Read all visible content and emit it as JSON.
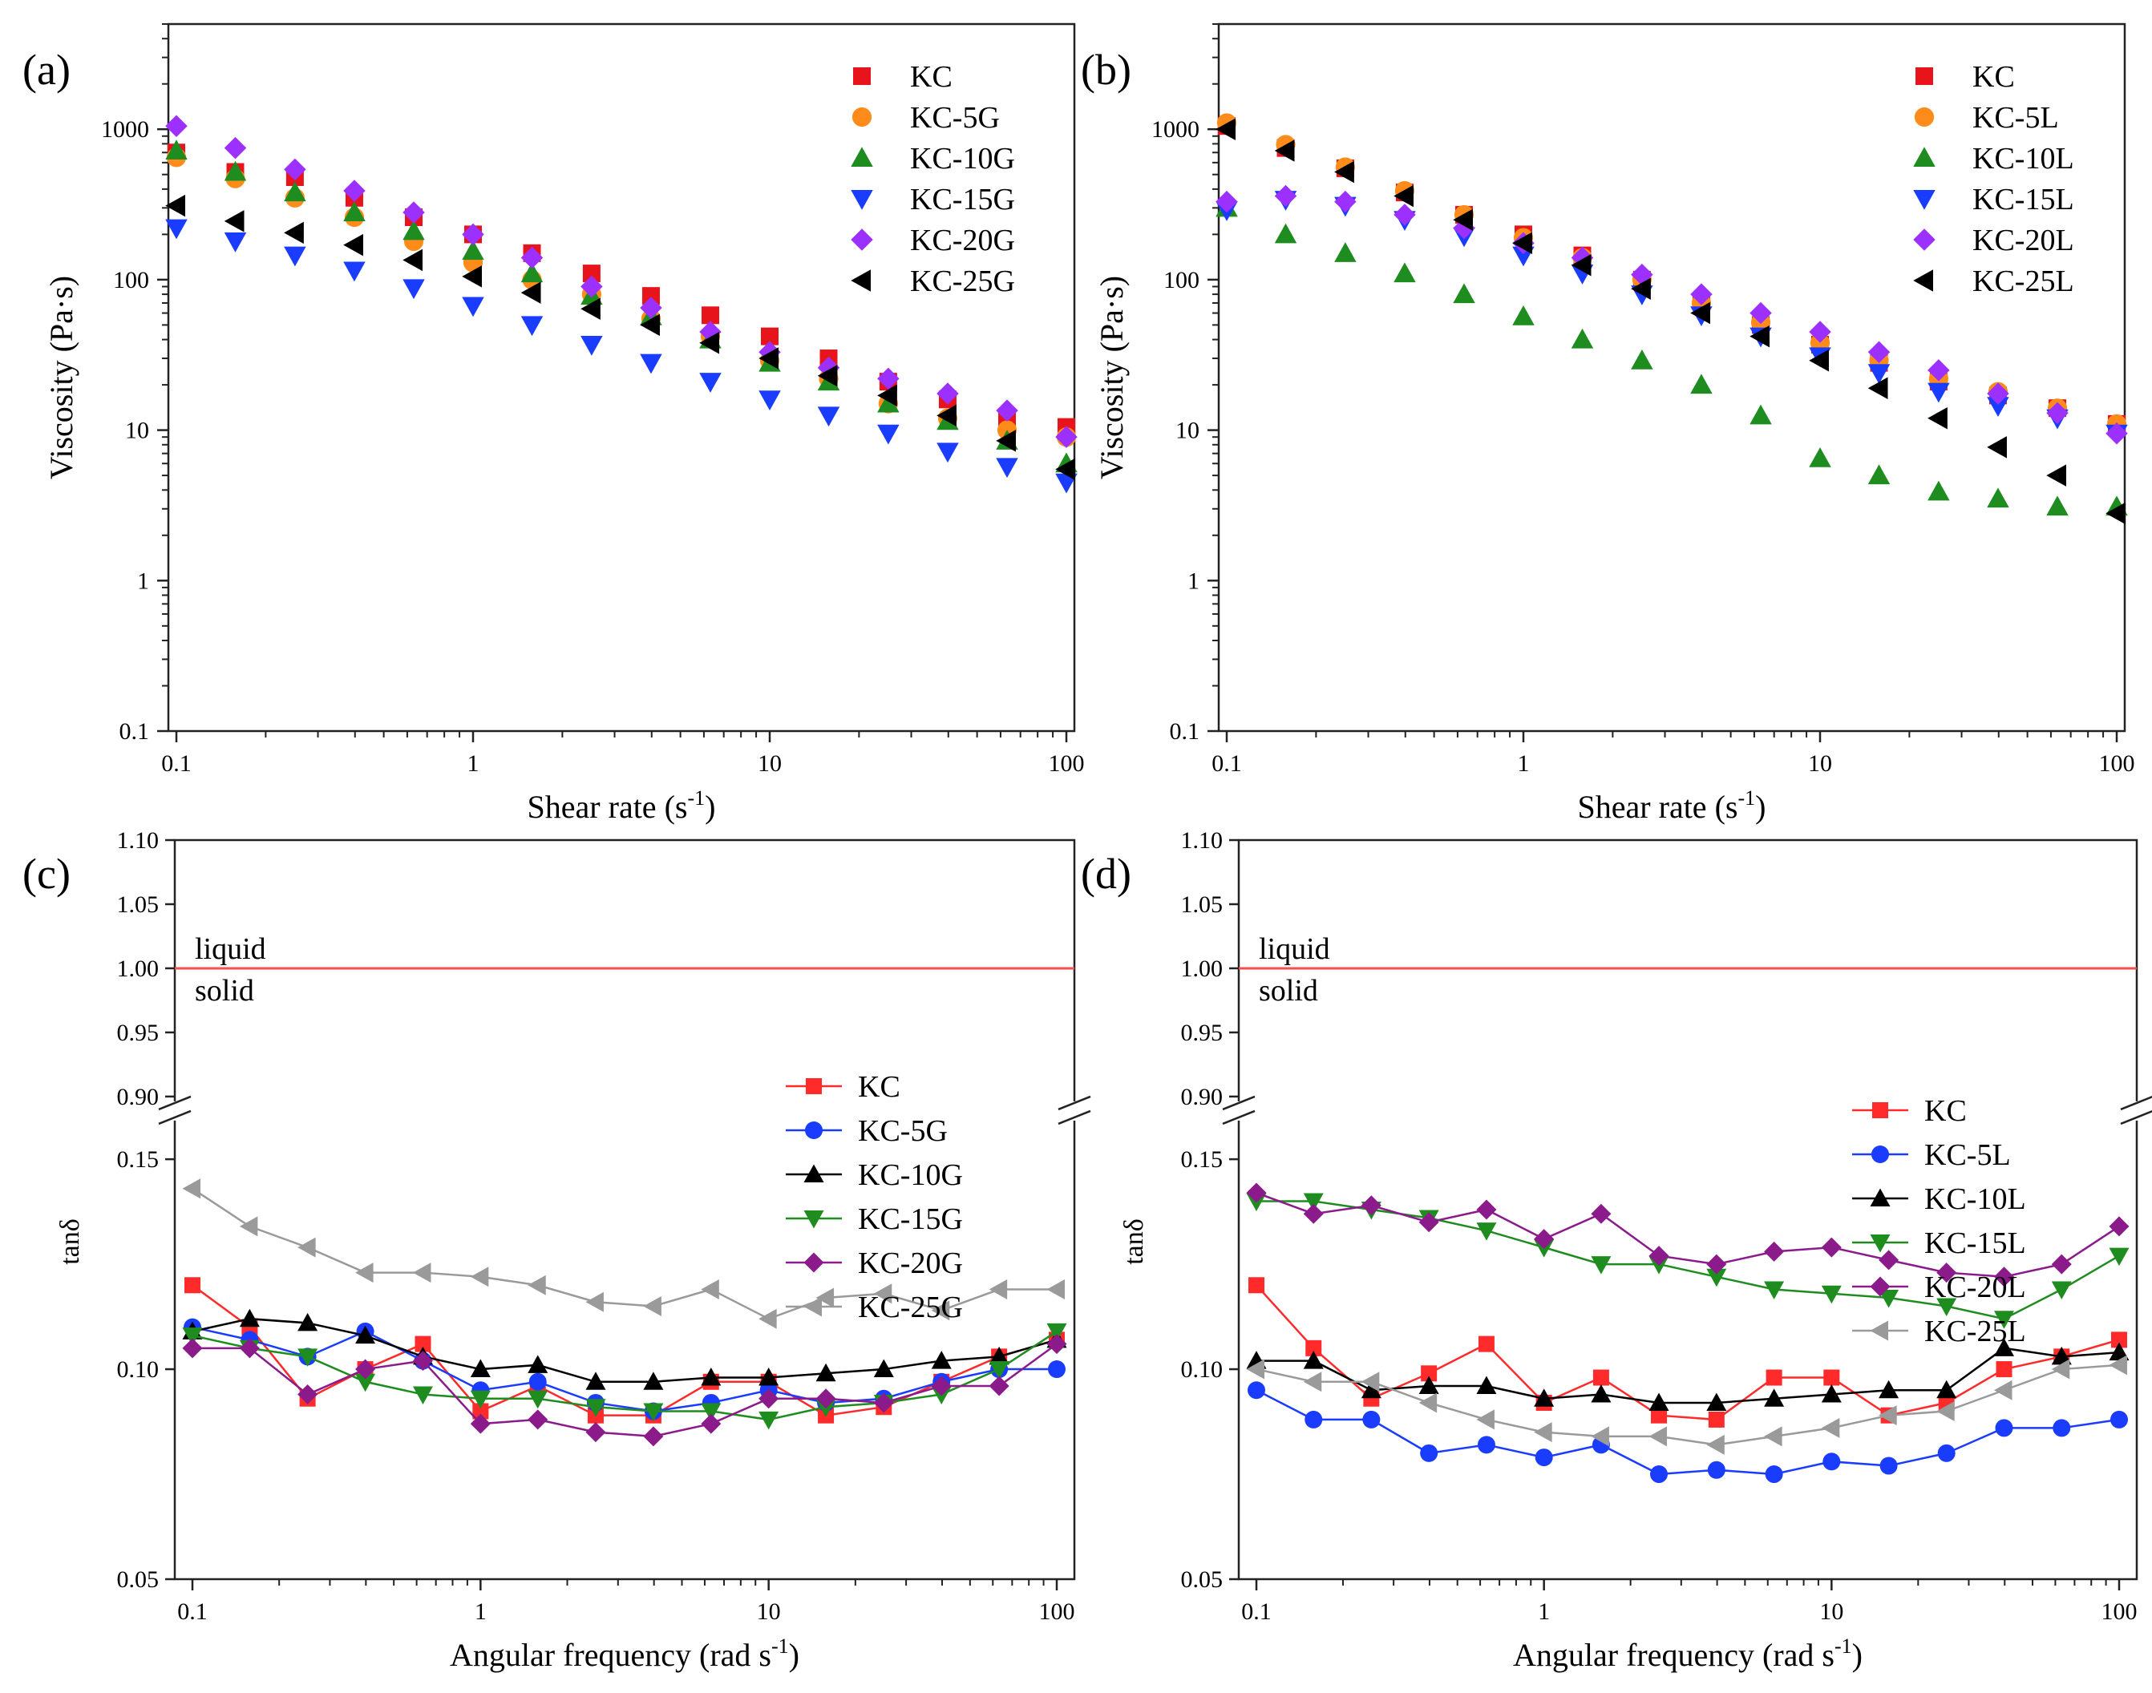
{
  "figure": {
    "chart_data": [
      {
        "id": "a",
        "type": "scatter",
        "panel_label": "(a)",
        "xlabel_main": "Shear rate (s",
        "xlabel_sup": "-1",
        "xlabel_tail": ")",
        "ylabel": "Viscosity (Pa·s)",
        "xscale": "log",
        "yscale": "log",
        "xlim": [
          0.1,
          100
        ],
        "ylim": [
          0.1,
          5000
        ],
        "xticks": [
          0.1,
          1,
          10,
          100
        ],
        "xtick_labels": [
          "0.1",
          "1",
          "10",
          "100"
        ],
        "yticks": [
          0.1,
          1,
          10,
          100,
          1000
        ],
        "ytick_labels": [
          "0.1",
          "1",
          "10",
          "100",
          "1000"
        ],
        "legend_position": "top-right",
        "x": [
          0.1,
          0.158,
          0.251,
          0.398,
          0.631,
          1,
          1.58,
          2.51,
          3.98,
          6.31,
          10,
          15.8,
          25.1,
          39.8,
          63.1,
          100
        ],
        "series": [
          {
            "name": "KC",
            "marker": "square",
            "color": "#e8141c",
            "values": [
              700,
              520,
              480,
              350,
              260,
              200,
              150,
              110,
              78,
              58,
              42,
              30,
              21,
              16,
              12,
              10.5
            ]
          },
          {
            "name": "KC-5G",
            "marker": "circle",
            "color": "#ff8c1a",
            "values": [
              650,
              470,
              350,
              260,
              180,
              130,
              100,
              80,
              55,
              42,
              29,
              22,
              15,
              12,
              10,
              9
            ]
          },
          {
            "name": "KC-10G",
            "marker": "triangle-up",
            "color": "#1f8c1f",
            "values": [
              720,
              520,
              380,
              280,
              210,
              155,
              110,
              78,
              57,
              40,
              28,
              21,
              15,
              11.5,
              8.5,
              6
            ]
          },
          {
            "name": "KC-15G",
            "marker": "triangle-down",
            "color": "#1a3cff",
            "values": [
              220,
              180,
              145,
              115,
              88,
              67,
              50,
              37,
              28,
              21,
              16,
              12.5,
              9.5,
              7.2,
              5.7,
              4.5
            ]
          },
          {
            "name": "KC-20G",
            "marker": "diamond",
            "color": "#9b30ff",
            "values": [
              1050,
              750,
              540,
              390,
              280,
              200,
              140,
              90,
              65,
              45,
              33,
              26,
              22,
              17.5,
              13.5,
              9
            ]
          },
          {
            "name": "KC-25G",
            "marker": "triangle-left",
            "color": "#000000",
            "values": [
              310,
              245,
              205,
              170,
              135,
              105,
              82,
              64,
              50,
              38,
              30,
              23,
              17,
              12.5,
              8.5,
              5.5
            ]
          }
        ]
      },
      {
        "id": "b",
        "type": "scatter",
        "panel_label": "(b)",
        "xlabel_main": "Shear rate (s",
        "xlabel_sup": "-1",
        "xlabel_tail": ")",
        "ylabel": "Viscosity (Pa·s)",
        "xscale": "log",
        "yscale": "log",
        "xlim": [
          0.1,
          100
        ],
        "ylim": [
          0.1,
          5000
        ],
        "xticks": [
          0.1,
          1,
          10,
          100
        ],
        "xtick_labels": [
          "0.1",
          "1",
          "10",
          "100"
        ],
        "yticks": [
          0.1,
          1,
          10,
          100,
          1000
        ],
        "ytick_labels": [
          "0.1",
          "1",
          "10",
          "100",
          "1000"
        ],
        "legend_position": "top-right",
        "x": [
          0.1,
          0.158,
          0.251,
          0.398,
          0.631,
          1,
          1.58,
          2.51,
          3.98,
          6.31,
          10,
          15.8,
          25.1,
          39.8,
          63.1,
          100
        ],
        "series": [
          {
            "name": "KC",
            "marker": "square",
            "color": "#e8141c",
            "values": [
              1050,
              750,
              550,
              380,
              270,
              200,
              145,
              100,
              72,
              50,
              37,
              28,
              21,
              17,
              14,
              11
            ]
          },
          {
            "name": "KC-5L",
            "marker": "circle",
            "color": "#ff8c1a",
            "values": [
              1100,
              790,
              560,
              390,
              270,
              190,
              140,
              100,
              70,
              52,
              38,
              29,
              22,
              18,
              14,
              11
            ]
          },
          {
            "name": "KC-10L",
            "marker": "triangle-up",
            "color": "#1f8c1f",
            "values": [
              300,
              200,
              150,
              110,
              80,
              57,
              40,
              29,
              20,
              12.5,
              6.5,
              5,
              3.9,
              3.5,
              3.1,
              3.1
            ]
          },
          {
            "name": "KC-15L",
            "marker": "triangle-down",
            "color": "#1a3cff",
            "values": [
              290,
              340,
              310,
              250,
              195,
              145,
              110,
              80,
              58,
              42,
              31,
              24,
              18,
              14.5,
              12,
              9.5
            ]
          },
          {
            "name": "KC-20L",
            "marker": "diamond",
            "color": "#9b30ff",
            "values": [
              330,
              360,
              330,
              270,
              220,
              175,
              140,
              108,
              80,
              60,
              45,
              33,
              25,
              17.5,
              13,
              9.5
            ]
          },
          {
            "name": "KC-25L",
            "marker": "triangle-left",
            "color": "#000000",
            "values": [
              1000,
              720,
              520,
              360,
              250,
              175,
              125,
              87,
              60,
              42,
              29,
              19,
              12,
              7.7,
              5,
              2.8
            ]
          }
        ]
      },
      {
        "id": "c",
        "type": "line",
        "panel_label": "(c)",
        "xlabel_main": "Angular frequency (rad s",
        "xlabel_sup": "-1",
        "xlabel_tail": ")",
        "ylabel": "tanδ",
        "xscale": "log",
        "yscale": "broken",
        "y_break": {
          "lower": [
            0.05,
            0.155
          ],
          "upper": [
            0.9,
            1.1
          ]
        },
        "xlim": [
          0.1,
          100
        ],
        "xticks": [
          0.1,
          1,
          10,
          100
        ],
        "xtick_labels": [
          "0.1",
          "1",
          "10",
          "100"
        ],
        "yticks_lower": [
          0.05,
          0.1,
          0.15
        ],
        "ytick_labels_lower": [
          "0.05",
          "0.10",
          "0.15"
        ],
        "yticks_upper": [
          0.9,
          0.95,
          1.0,
          1.05,
          1.1
        ],
        "ytick_labels_upper": [
          "0.90",
          "0.95",
          "1.00",
          "1.05",
          "1.10"
        ],
        "reference_line": {
          "y": 1.0,
          "color": "#f25050",
          "label_above": "liquid",
          "label_below": "solid"
        },
        "legend_position": "middle-right",
        "x": [
          0.1,
          0.158,
          0.251,
          0.398,
          0.631,
          1,
          1.58,
          2.51,
          3.98,
          6.31,
          10,
          15.8,
          25.1,
          39.8,
          63.1,
          100
        ],
        "series": [
          {
            "name": "KC",
            "marker": "square",
            "color": "#ff2a2a",
            "values": [
              0.12,
              0.11,
              0.093,
              0.1,
              0.106,
              0.09,
              0.096,
              0.089,
              0.089,
              0.097,
              0.097,
              0.089,
              0.091,
              0.097,
              0.103,
              0.107
            ]
          },
          {
            "name": "KC-5G",
            "marker": "circle",
            "color": "#1a3cff",
            "values": [
              0.11,
              0.107,
              0.103,
              0.109,
              0.102,
              0.095,
              0.097,
              0.092,
              0.09,
              0.092,
              0.095,
              0.092,
              0.093,
              0.097,
              0.1,
              0.1
            ]
          },
          {
            "name": "KC-10G",
            "marker": "triangle-up",
            "color": "#000000",
            "values": [
              0.109,
              0.112,
              0.111,
              0.108,
              0.103,
              0.1,
              0.101,
              0.097,
              0.097,
              0.098,
              0.098,
              0.099,
              0.1,
              0.102,
              0.103,
              0.107
            ]
          },
          {
            "name": "KC-15G",
            "marker": "triangle-down",
            "color": "#1f8c1f",
            "values": [
              0.108,
              0.105,
              0.103,
              0.097,
              0.094,
              0.093,
              0.093,
              0.091,
              0.09,
              0.09,
              0.088,
              0.091,
              0.092,
              0.094,
              0.1,
              0.109
            ]
          },
          {
            "name": "KC-20G",
            "marker": "diamond",
            "color": "#8b1a8b",
            "values": [
              0.105,
              0.105,
              0.094,
              0.1,
              0.102,
              0.087,
              0.088,
              0.085,
              0.084,
              0.087,
              0.093,
              0.093,
              0.092,
              0.096,
              0.096,
              0.106
            ]
          },
          {
            "name": "KC-25G",
            "marker": "triangle-left",
            "color": "#9a9a9a",
            "values": [
              0.143,
              0.134,
              0.129,
              0.123,
              0.123,
              0.122,
              0.12,
              0.116,
              0.115,
              0.119,
              0.112,
              0.117,
              0.118,
              0.114,
              0.119,
              0.119
            ]
          }
        ]
      },
      {
        "id": "d",
        "type": "line",
        "panel_label": "(d)",
        "xlabel_main": "Angular frequency (rad s",
        "xlabel_sup": "-1",
        "xlabel_tail": ")",
        "ylabel": "tanδ",
        "xscale": "log",
        "yscale": "broken",
        "y_break": {
          "lower": [
            0.05,
            0.155
          ],
          "upper": [
            0.9,
            1.1
          ]
        },
        "xlim": [
          0.1,
          100
        ],
        "xticks": [
          0.1,
          1,
          10,
          100
        ],
        "xtick_labels": [
          "0.1",
          "1",
          "10",
          "100"
        ],
        "yticks_lower": [
          0.05,
          0.1,
          0.15
        ],
        "ytick_labels_lower": [
          "0.05",
          "0.10",
          "0.15"
        ],
        "yticks_upper": [
          0.9,
          0.95,
          1.0,
          1.05,
          1.1
        ],
        "ytick_labels_upper": [
          "0.90",
          "0.95",
          "1.00",
          "1.05",
          "1.10"
        ],
        "reference_line": {
          "y": 1.0,
          "color": "#f25050",
          "label_above": "liquid",
          "label_below": "solid"
        },
        "legend_position": "middle-right",
        "x": [
          0.1,
          0.158,
          0.251,
          0.398,
          0.631,
          1,
          1.58,
          2.51,
          3.98,
          6.31,
          10,
          15.8,
          25.1,
          39.8,
          63.1,
          100
        ],
        "series": [
          {
            "name": "KC",
            "marker": "square",
            "color": "#ff2a2a",
            "values": [
              0.12,
              0.105,
              0.093,
              0.099,
              0.106,
              0.092,
              0.098,
              0.089,
              0.088,
              0.098,
              0.098,
              0.089,
              0.092,
              0.1,
              0.103,
              0.107
            ]
          },
          {
            "name": "KC-5L",
            "marker": "circle",
            "color": "#1a3cff",
            "values": [
              0.095,
              0.088,
              0.088,
              0.08,
              0.082,
              0.079,
              0.082,
              0.075,
              0.076,
              0.075,
              0.078,
              0.077,
              0.08,
              0.086,
              0.086,
              0.088
            ]
          },
          {
            "name": "KC-10L",
            "marker": "triangle-up",
            "color": "#000000",
            "values": [
              0.102,
              0.102,
              0.095,
              0.096,
              0.096,
              0.093,
              0.094,
              0.092,
              0.092,
              0.093,
              0.094,
              0.095,
              0.095,
              0.105,
              0.103,
              0.104
            ]
          },
          {
            "name": "KC-15L",
            "marker": "triangle-down",
            "color": "#1f8c1f",
            "values": [
              0.14,
              0.14,
              0.138,
              0.136,
              0.133,
              0.129,
              0.125,
              0.125,
              0.122,
              0.119,
              0.118,
              0.117,
              0.115,
              0.112,
              0.119,
              0.127
            ]
          },
          {
            "name": "KC-20L",
            "marker": "diamond",
            "color": "#8b1a8b",
            "values": [
              0.142,
              0.137,
              0.139,
              0.135,
              0.138,
              0.131,
              0.137,
              0.127,
              0.125,
              0.128,
              0.129,
              0.126,
              0.123,
              0.122,
              0.125,
              0.134
            ]
          },
          {
            "name": "KC-25L",
            "marker": "triangle-left",
            "color": "#9a9a9a",
            "values": [
              0.1,
              0.097,
              0.097,
              0.092,
              0.088,
              0.085,
              0.084,
              0.084,
              0.082,
              0.084,
              0.086,
              0.089,
              0.09,
              0.095,
              0.1,
              0.101
            ]
          }
        ]
      }
    ]
  }
}
